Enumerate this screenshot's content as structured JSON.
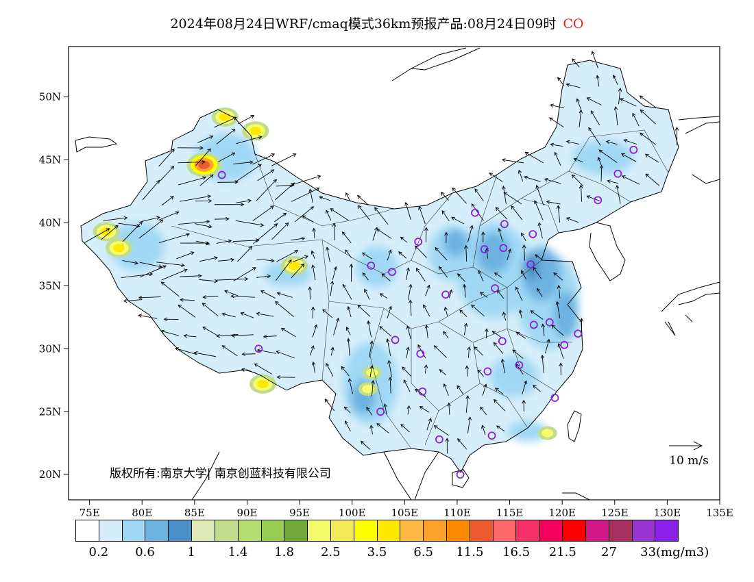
{
  "title": {
    "text": "2024年08月24日WRF/cmaq模式36km预报产品:08月24日09时",
    "species": "CO",
    "species_color": "#e8201e"
  },
  "map": {
    "lon_ticks": [
      "75E",
      "80E",
      "85E",
      "90E",
      "95E",
      "100E",
      "105E",
      "110E",
      "115E",
      "120E",
      "125E",
      "130E",
      "135E"
    ],
    "lat_ticks": [
      "50N",
      "45N",
      "40N",
      "35N",
      "30N",
      "25N",
      "20N"
    ],
    "copyright": "版权所有:南京大学| 南京创蓝科技有限公司",
    "wind_legend": "10 m/s",
    "station_color": "#8a1fd8",
    "stations": [
      {
        "lon": 126.8,
        "lat": 45.8
      },
      {
        "lon": 125.3,
        "lat": 43.9
      },
      {
        "lon": 123.4,
        "lat": 41.8
      },
      {
        "lon": 87.6,
        "lat": 43.8
      },
      {
        "lon": 111.7,
        "lat": 40.8
      },
      {
        "lon": 114.5,
        "lat": 39.9
      },
      {
        "lon": 117.2,
        "lat": 39.1
      },
      {
        "lon": 106.3,
        "lat": 38.5
      },
      {
        "lon": 112.6,
        "lat": 37.9
      },
      {
        "lon": 114.4,
        "lat": 38.0
      },
      {
        "lon": 117.0,
        "lat": 36.7
      },
      {
        "lon": 101.8,
        "lat": 36.6
      },
      {
        "lon": 103.8,
        "lat": 36.1
      },
      {
        "lon": 113.6,
        "lat": 34.8
      },
      {
        "lon": 108.9,
        "lat": 34.3
      },
      {
        "lon": 117.3,
        "lat": 31.9
      },
      {
        "lon": 118.8,
        "lat": 32.1
      },
      {
        "lon": 121.5,
        "lat": 31.2
      },
      {
        "lon": 120.2,
        "lat": 30.3
      },
      {
        "lon": 114.3,
        "lat": 30.6
      },
      {
        "lon": 104.1,
        "lat": 30.7
      },
      {
        "lon": 106.5,
        "lat": 29.6
      },
      {
        "lon": 91.1,
        "lat": 30.0
      },
      {
        "lon": 112.9,
        "lat": 28.2
      },
      {
        "lon": 115.9,
        "lat": 28.7
      },
      {
        "lon": 106.7,
        "lat": 26.6
      },
      {
        "lon": 119.3,
        "lat": 26.1
      },
      {
        "lon": 102.7,
        "lat": 25.0
      },
      {
        "lon": 113.3,
        "lat": 23.1
      },
      {
        "lon": 108.3,
        "lat": 22.8
      },
      {
        "lon": 110.3,
        "lat": 20.0
      }
    ],
    "hotspots": [
      {
        "lon": 85.9,
        "lat": 44.6,
        "level": "high"
      },
      {
        "lon": 87.9,
        "lat": 48.4,
        "level": "mid"
      },
      {
        "lon": 90.8,
        "lat": 47.3,
        "level": "mid"
      },
      {
        "lon": 94.5,
        "lat": 36.6,
        "level": "mid"
      },
      {
        "lon": 91.5,
        "lat": 27.2,
        "level": "mid"
      },
      {
        "lon": 76.6,
        "lat": 39.3,
        "level": "mid"
      },
      {
        "lon": 77.8,
        "lat": 38.0,
        "level": "mid"
      },
      {
        "lon": 101.5,
        "lat": 26.8,
        "level": "low"
      },
      {
        "lon": 101.9,
        "lat": 28.1,
        "level": "low"
      },
      {
        "lon": 118.6,
        "lat": 23.3,
        "level": "low"
      }
    ]
  },
  "colorbar": {
    "colors": [
      "#ffffff",
      "#d6eefa",
      "#a0d8f4",
      "#6cb3e0",
      "#4a8fc6",
      "#dde8b4",
      "#c2dc8e",
      "#b4dc70",
      "#96cc50",
      "#72a83a",
      "#f4fc6c",
      "#f2e858",
      "#fffe00",
      "#fdea00",
      "#fcb844",
      "#fca22c",
      "#fc8a00",
      "#ee5a30",
      "#fc686c",
      "#f4306a",
      "#f4005e",
      "#fc0000",
      "#d01888",
      "#a83060",
      "#9834d0",
      "#8a1fe8"
    ],
    "labels": [
      "0.2",
      "0.6",
      "1",
      "1.4",
      "1.8",
      "2.5",
      "3.5",
      "6.5",
      "11.5",
      "16.5",
      "21.5",
      "27",
      "33(mg/m3)"
    ]
  }
}
